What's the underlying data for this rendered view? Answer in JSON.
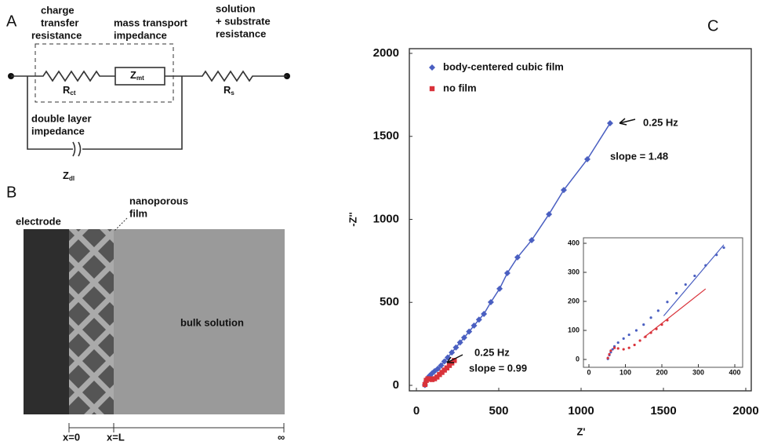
{
  "panel_a": {
    "label": "A",
    "charge_transfer": [
      "charge",
      "transfer",
      "resistance"
    ],
    "mass_transport": [
      "mass transport",
      "impedance"
    ],
    "solution": [
      "solution",
      "+ substrate",
      "resistance"
    ],
    "double_layer": [
      "double layer",
      "impedance"
    ],
    "r_ct": {
      "main": "R",
      "sub": "ct"
    },
    "z_mt": {
      "main": "Z",
      "sub": "mt"
    },
    "r_s": {
      "main": "R",
      "sub": "s"
    },
    "z_dl": {
      "main": "Z",
      "sub": "dl"
    }
  },
  "panel_b": {
    "label": "B",
    "electrode": "electrode",
    "film": [
      "nanoporous",
      "film"
    ],
    "bulk": "bulk solution",
    "x0": "x=0",
    "xl": "x=L",
    "inf": "∞"
  },
  "panel_c_label": "C",
  "chart_data": [
    {
      "type": "scatter",
      "xlabel": "Z'",
      "ylabel": "-Z''",
      "xlim": [
        0,
        2000
      ],
      "ylim": [
        0,
        2000
      ],
      "xticks": [
        0,
        500,
        1000,
        1500,
        2000
      ],
      "yticks": [
        0,
        500,
        1000,
        1500,
        2000
      ],
      "legend": "top-left",
      "annotations": [
        "0.25 Hz",
        "slope = 1.48",
        "0.25 Hz",
        "slope = 0.99"
      ],
      "series": [
        {
          "name": "body-centered cubic film",
          "color": "#4a5fc1",
          "marker": "diamond",
          "line": true,
          "x": [
            1176,
            1038,
            895,
            805,
            700,
            614,
            552,
            505,
            452,
            410,
            380,
            350,
            320,
            290,
            265,
            240,
            215,
            190,
            170,
            150,
            130,
            110,
            95,
            80,
            70,
            60,
            52
          ],
          "values": [
            1579,
            1362,
            1177,
            1031,
            875,
            771,
            676,
            582,
            501,
            430,
            396,
            360,
            324,
            288,
            258,
            228,
            198,
            168,
            144,
            120,
            100,
            85,
            72,
            58,
            45,
            25,
            2
          ]
        },
        {
          "name": "no film",
          "color": "#d9323a",
          "marker": "square",
          "line": false,
          "x": [
            230,
            215,
            200,
            185,
            170,
            155,
            140,
            125,
            110,
            95,
            80,
            70,
            60,
            52
          ],
          "values": [
            150,
            135,
            120,
            105,
            92,
            78,
            65,
            50,
            40,
            35,
            38,
            40,
            30,
            5
          ]
        }
      ]
    },
    {
      "type": "scatter",
      "xlim": [
        0,
        400
      ],
      "ylim": [
        0,
        400
      ],
      "xticks": [
        0,
        100,
        200,
        300,
        400
      ],
      "yticks": [
        0,
        100,
        200,
        300,
        400
      ],
      "series": [
        {
          "color": "#4a5fc1",
          "marker": "dot",
          "line": false,
          "x": [
            52,
            56,
            60,
            65,
            70,
            80,
            95,
            110,
            130,
            150,
            170,
            190,
            215,
            240,
            265,
            290,
            320,
            350,
            370
          ],
          "values": [
            2,
            15,
            25,
            35,
            45,
            58,
            72,
            85,
            100,
            120,
            144,
            168,
            198,
            228,
            258,
            288,
            324,
            360,
            385
          ]
        },
        {
          "color": "#d9323a",
          "marker": "dot",
          "line": false,
          "x": [
            52,
            56,
            60,
            70,
            80,
            95,
            110,
            125,
            140,
            155,
            170,
            185,
            200,
            215
          ],
          "values": [
            5,
            18,
            30,
            40,
            38,
            35,
            40,
            50,
            65,
            78,
            92,
            105,
            120,
            135
          ]
        }
      ],
      "fit_lines": [
        {
          "color": "#4a5fc1",
          "x": [
            205,
            370
          ],
          "values": [
            150,
            395
          ]
        },
        {
          "color": "#d9323a",
          "x": [
            150,
            320
          ],
          "values": [
            75,
            243
          ]
        }
      ]
    }
  ]
}
